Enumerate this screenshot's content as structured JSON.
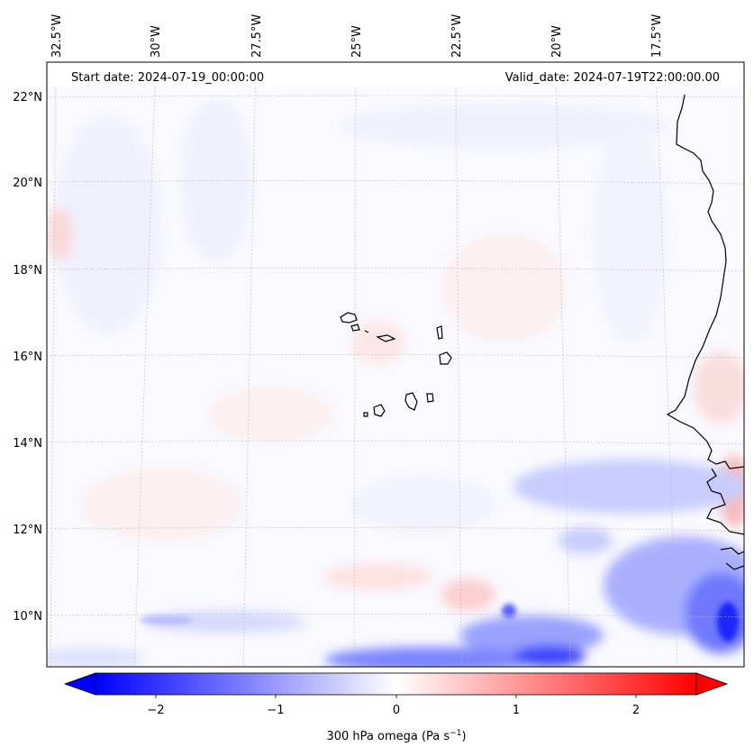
{
  "header": {
    "start_date": "Start date: 2024-07-19_00:00:00",
    "valid_date": "Valid_date: 2024-07-19T22:00:00.00"
  },
  "map": {
    "longitude_labels": [
      "32.5°W",
      "30°W",
      "27.5°W",
      "25°W",
      "22.5°W",
      "20°W",
      "17.5°W"
    ],
    "latitude_labels": [
      "22°N",
      "20°N",
      "18°N",
      "16°N",
      "14°N",
      "12°N",
      "10°N"
    ],
    "field": "300 hPa omega",
    "colormap": "bwr",
    "coastline_color": "#000000",
    "gridline_color": "#bbbbbb"
  },
  "colorbar": {
    "ticks": [
      "−2",
      "−1",
      "0",
      "1",
      "2"
    ],
    "tick_values": [
      -2,
      -1,
      0,
      1,
      2
    ],
    "range": [
      -2.5,
      2.5
    ],
    "extend": "both",
    "label_main": "300 hPa omega (Pa s",
    "label_sup": "−1",
    "label_end": ")",
    "low_color": "#0000ff",
    "mid_color": "#ffffff",
    "high_color": "#ff0000"
  }
}
